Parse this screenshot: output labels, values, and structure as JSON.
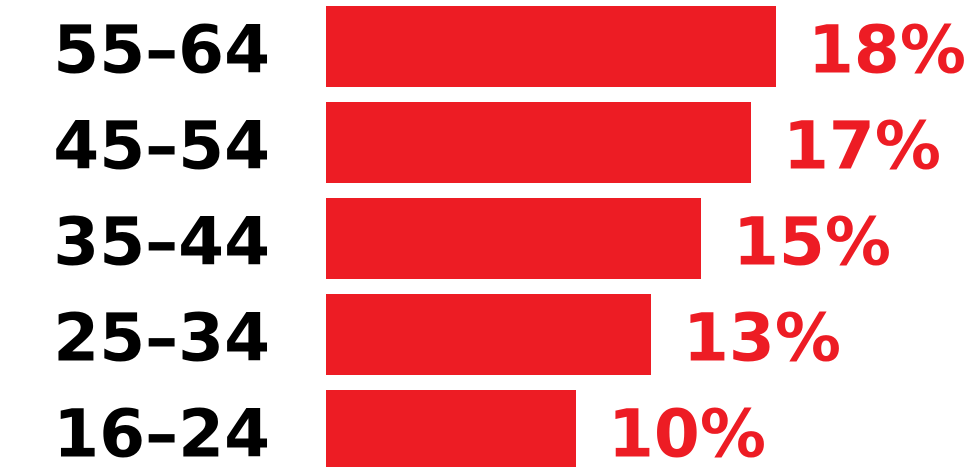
{
  "chart_data": {
    "type": "bar",
    "orientation": "horizontal",
    "categories": [
      "55–64",
      "45–54",
      "35–44",
      "25–34",
      "16–24"
    ],
    "values": [
      18,
      17,
      15,
      13,
      10
    ],
    "value_labels": [
      "18%",
      "17%",
      "15%",
      "13%",
      "10%"
    ],
    "unit": "%",
    "title": "",
    "xlabel": "",
    "ylabel": "",
    "grid": false,
    "legend": "none"
  },
  "colors": {
    "bar": "#ed1c24",
    "value_text": "#ed1c24",
    "category_text": "#000000",
    "background": "#ffffff"
  }
}
